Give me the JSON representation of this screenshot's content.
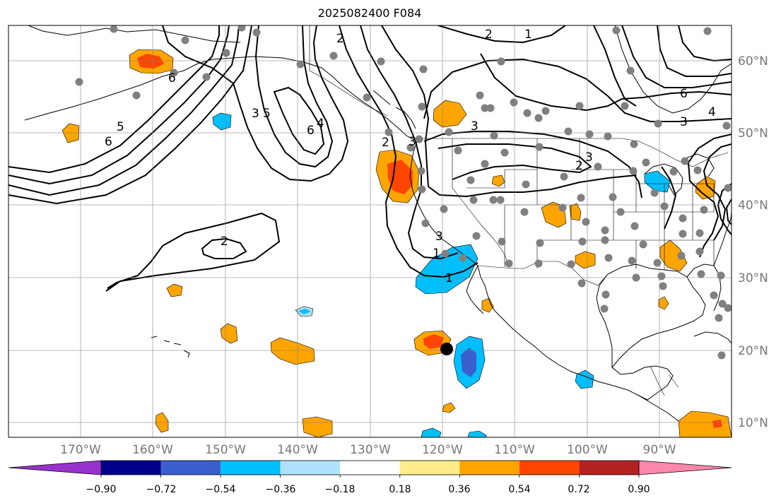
{
  "title": "2025082400 F084",
  "map": {
    "projection": "PlateCarree",
    "extent": {
      "lon_min": -180,
      "lon_max": -79.5,
      "lat_min": 8,
      "lat_max": 65
    },
    "gridlines": true,
    "lon_labels": [
      "170°W",
      "160°W",
      "150°W",
      "140°W",
      "130°W",
      "120°W",
      "110°W",
      "100°W",
      "90°W"
    ],
    "lat_labels": [
      "60°N",
      "50°N",
      "40°N",
      "30°N",
      "20°N",
      "10°N"
    ],
    "contour_labels": [
      "2",
      "1",
      "2",
      "3",
      "5",
      "6",
      "6",
      "5",
      "6",
      "4",
      "2",
      "3",
      "3",
      "2",
      "2",
      "3",
      "1",
      "1",
      "6",
      "3",
      "4",
      "3"
    ],
    "marker": {
      "name": "black-dot",
      "lon": -119,
      "lat": 20.2
    }
  },
  "colorbar": {
    "ticks": [
      "−0.90",
      "−0.72",
      "−0.54",
      "−0.36",
      "−0.18",
      "0.18",
      "0.36",
      "0.54",
      "0.72",
      "0.90"
    ],
    "levels": [
      -0.9,
      -0.72,
      -0.54,
      -0.36,
      -0.18,
      0.18,
      0.36,
      0.54,
      0.72,
      0.9
    ],
    "colors": [
      "#9932CC",
      "#00008B",
      "#3A5FCD",
      "#00BFFF",
      "#B0E2FF",
      "#FFFFFF",
      "#FFEC8B",
      "#FFA500",
      "#FF4500",
      "#B22222",
      "#FF88AA"
    ],
    "extend": "both"
  }
}
